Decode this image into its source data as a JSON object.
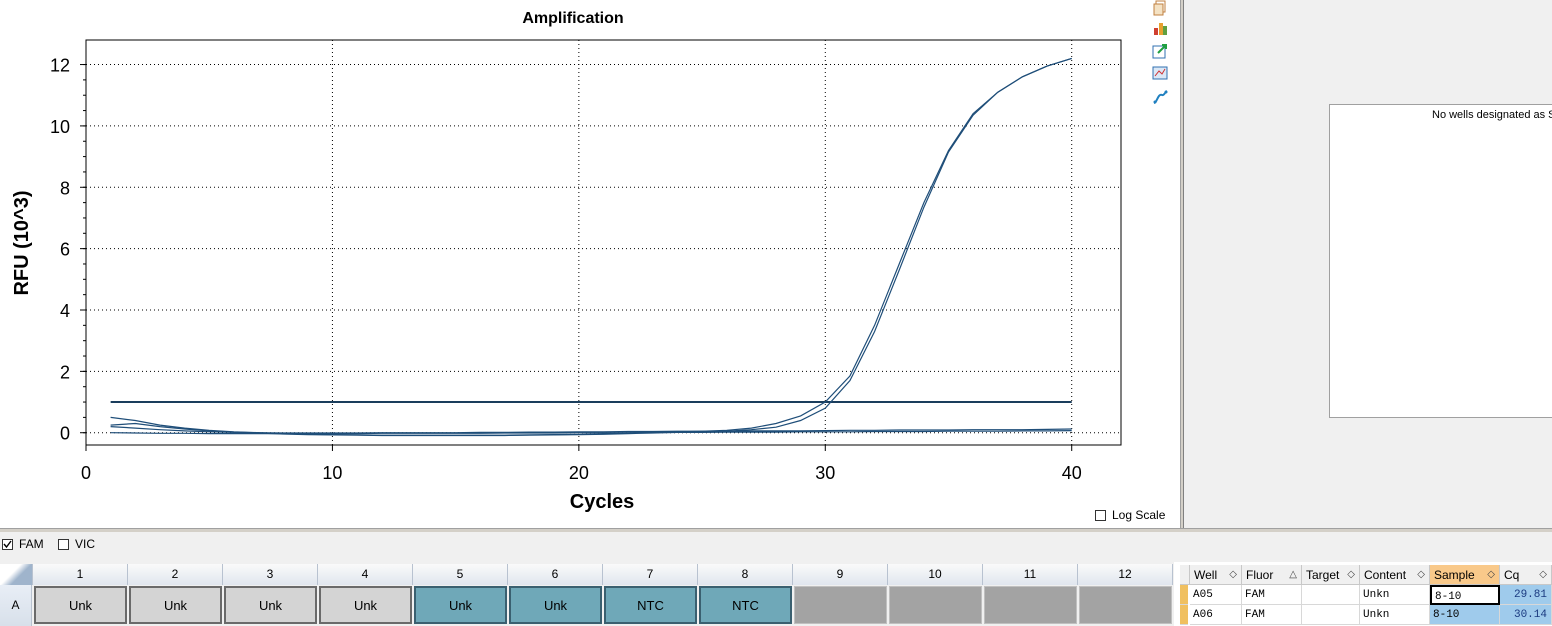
{
  "chart_data": {
    "type": "line",
    "title": "Amplification",
    "xlabel": "Cycles",
    "ylabel": "RFU (10^3)",
    "xlim": [
      0,
      42
    ],
    "ylim": [
      -0.4,
      12.8
    ],
    "xticks": [
      0,
      10,
      20,
      30,
      40
    ],
    "yticks": [
      0,
      2,
      4,
      6,
      8,
      10,
      12
    ],
    "grid": true,
    "threshold": 1.0,
    "log_scale": false,
    "line_color": "#1f4e79",
    "series": [
      {
        "x": [
          1,
          2,
          3,
          4,
          5,
          6,
          7,
          8,
          9,
          10,
          11,
          12,
          13,
          14,
          15,
          16,
          17,
          18,
          19,
          20,
          21,
          22,
          23,
          24,
          25,
          26,
          27,
          28,
          29,
          30,
          31,
          32,
          33,
          34,
          35,
          36,
          37,
          38,
          39,
          40
        ],
        "values": [
          0.5,
          0.4,
          0.25,
          0.15,
          0.08,
          0.03,
          0.0,
          -0.03,
          -0.05,
          -0.06,
          -0.07,
          -0.08,
          -0.08,
          -0.08,
          -0.08,
          -0.08,
          -0.08,
          -0.07,
          -0.06,
          -0.05,
          -0.03,
          -0.01,
          0.01,
          0.03,
          0.05,
          0.08,
          0.15,
          0.3,
          0.55,
          1.0,
          1.85,
          3.5,
          5.5,
          7.5,
          9.2,
          10.4,
          11.1,
          11.6,
          11.95,
          12.2
        ]
      },
      {
        "x": [
          1,
          2,
          3,
          4,
          5,
          6,
          7,
          8,
          9,
          10,
          11,
          12,
          13,
          14,
          15,
          16,
          17,
          18,
          19,
          20,
          21,
          22,
          23,
          24,
          25,
          26,
          27,
          28,
          29,
          30,
          31,
          32,
          33,
          34,
          35,
          36,
          37,
          38,
          39,
          40
        ],
        "values": [
          0.25,
          0.3,
          0.2,
          0.12,
          0.06,
          0.02,
          -0.01,
          -0.04,
          -0.06,
          -0.07,
          -0.08,
          -0.09,
          -0.09,
          -0.09,
          -0.09,
          -0.09,
          -0.09,
          -0.08,
          -0.07,
          -0.06,
          -0.05,
          -0.03,
          -0.01,
          0.01,
          0.03,
          0.05,
          0.1,
          0.18,
          0.4,
          0.8,
          1.7,
          3.3,
          5.3,
          7.35,
          9.15,
          10.35,
          11.1,
          11.6,
          11.95,
          12.2
        ]
      },
      {
        "x": [
          1,
          2,
          3,
          4,
          5,
          6,
          7,
          8,
          9,
          10,
          11,
          12,
          13,
          14,
          15,
          16,
          17,
          18,
          19,
          20,
          21,
          22,
          23,
          24,
          25,
          26,
          27,
          28,
          29,
          30,
          31,
          32,
          33,
          34,
          35,
          36,
          37,
          38,
          39,
          40
        ],
        "values": [
          0.2,
          0.15,
          0.1,
          0.06,
          0.03,
          0.01,
          0.0,
          -0.01,
          -0.01,
          -0.01,
          -0.01,
          0.0,
          0.0,
          0.0,
          0.0,
          0.01,
          0.01,
          0.02,
          0.02,
          0.03,
          0.03,
          0.04,
          0.04,
          0.05,
          0.05,
          0.05,
          0.06,
          0.06,
          0.06,
          0.07,
          0.08,
          0.08,
          0.09,
          0.09,
          0.09,
          0.1,
          0.1,
          0.1,
          0.11,
          0.12
        ]
      },
      {
        "x": [
          1,
          2,
          3,
          4,
          5,
          6,
          7,
          8,
          9,
          10,
          11,
          12,
          13,
          14,
          15,
          16,
          17,
          18,
          19,
          20,
          21,
          22,
          23,
          24,
          25,
          26,
          27,
          28,
          29,
          30,
          31,
          32,
          33,
          34,
          35,
          36,
          37,
          38,
          39,
          40
        ],
        "values": [
          0.0,
          -0.01,
          -0.02,
          -0.02,
          -0.03,
          -0.03,
          -0.03,
          -0.03,
          -0.03,
          -0.03,
          -0.03,
          -0.02,
          -0.02,
          -0.02,
          -0.02,
          -0.02,
          -0.01,
          -0.01,
          -0.01,
          0.0,
          0.0,
          0.0,
          0.01,
          0.01,
          0.01,
          0.02,
          0.02,
          0.02,
          0.03,
          0.03,
          0.03,
          0.04,
          0.04,
          0.04,
          0.05,
          0.05,
          0.05,
          0.06,
          0.06,
          0.07
        ]
      }
    ]
  },
  "toolbar": {
    "icons": [
      "copy-icon",
      "chart-settings-icon",
      "export-icon",
      "zoom-chart-icon",
      "curve-icon"
    ]
  },
  "standard_curve": {
    "message": "No wells designated as S"
  },
  "log_scale": {
    "label": "Log Scale",
    "checked": false
  },
  "fluor_filters": [
    {
      "label": "FAM",
      "checked": true
    },
    {
      "label": "VIC",
      "checked": false
    }
  ],
  "plate": {
    "columns": [
      "1",
      "2",
      "3",
      "4",
      "5",
      "6",
      "7",
      "8",
      "9",
      "10",
      "11",
      "12"
    ],
    "rows": [
      {
        "label": "A",
        "wells": [
          {
            "content": "Unk",
            "state": "unk"
          },
          {
            "content": "Unk",
            "state": "unk"
          },
          {
            "content": "Unk",
            "state": "unk"
          },
          {
            "content": "Unk",
            "state": "unk"
          },
          {
            "content": "Unk",
            "state": "teal"
          },
          {
            "content": "Unk",
            "state": "teal"
          },
          {
            "content": "NTC",
            "state": "teal"
          },
          {
            "content": "NTC",
            "state": "teal"
          },
          {
            "content": "",
            "state": "empty"
          },
          {
            "content": "",
            "state": "empty"
          },
          {
            "content": "",
            "state": "empty"
          },
          {
            "content": "",
            "state": "empty"
          }
        ]
      }
    ]
  },
  "results_table": {
    "headers": [
      "Well",
      "Fluor",
      "Target",
      "Content",
      "Sample",
      "Cq"
    ],
    "sort_column": "Fluor",
    "active_column": "Sample",
    "rows": [
      {
        "well": "A05",
        "fluor": "FAM",
        "target": "",
        "content": "Unkn",
        "sample": "8-10",
        "cq": "29.81"
      },
      {
        "well": "A06",
        "fluor": "FAM",
        "target": "",
        "content": "Unkn",
        "sample": "8-10",
        "cq": "30.14"
      }
    ]
  }
}
